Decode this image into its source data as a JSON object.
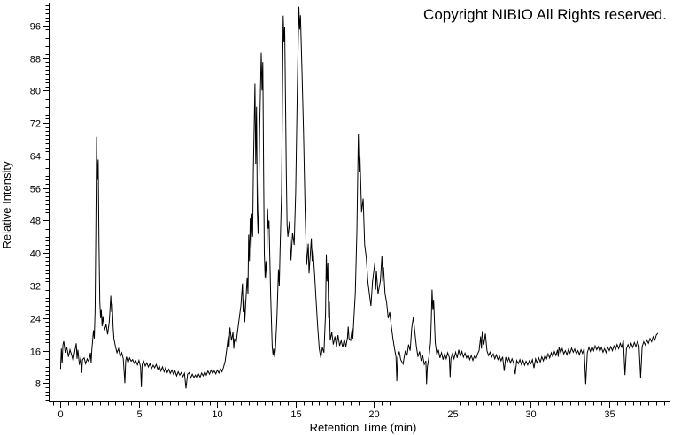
{
  "chart_data": {
    "type": "line",
    "annotation": "Copyright NIBIO All Rights reserved.",
    "xlabel": "Retention Time (min)",
    "ylabel": "Relative Intensity",
    "x_major_ticks": [
      0,
      5,
      10,
      15,
      20,
      25,
      30,
      35
    ],
    "x_minor_step": 0.5,
    "x_minor_range": [
      -0.5,
      38.5
    ],
    "y_major_ticks": [
      8,
      16,
      24,
      32,
      40,
      48,
      56,
      64,
      72,
      80,
      88,
      96
    ],
    "y_minor_step": 1,
    "y_minor_range": [
      4,
      101
    ],
    "xlim": [
      -0.73,
      38.9
    ],
    "ylim": [
      3.4,
      101.6
    ],
    "grid": false,
    "legend": "none",
    "line_color": "#000000",
    "axis_color": "#000000",
    "background": "#ffffff",
    "points": [
      [
        0.0,
        11.5
      ],
      [
        0.05,
        16.5
      ],
      [
        0.1,
        13.0
      ],
      [
        0.15,
        17.5
      ],
      [
        0.2,
        18.3
      ],
      [
        0.3,
        15.5
      ],
      [
        0.4,
        16.8
      ],
      [
        0.5,
        14.5
      ],
      [
        0.6,
        16.2
      ],
      [
        0.7,
        15.0
      ],
      [
        0.8,
        13.5
      ],
      [
        0.9,
        15.8
      ],
      [
        1.0,
        17.8
      ],
      [
        1.05,
        14.0
      ],
      [
        1.1,
        16.2
      ],
      [
        1.2,
        12.5
      ],
      [
        1.3,
        14.5
      ],
      [
        1.35,
        10.5
      ],
      [
        1.4,
        13.8
      ],
      [
        1.5,
        14.2
      ],
      [
        1.6,
        12.8
      ],
      [
        1.7,
        14.0
      ],
      [
        1.8,
        13.2
      ],
      [
        1.9,
        15.5
      ],
      [
        1.95,
        13.0
      ],
      [
        2.0,
        16.5
      ],
      [
        2.1,
        21.0
      ],
      [
        2.15,
        19.0
      ],
      [
        2.2,
        26.0
      ],
      [
        2.25,
        45.0
      ],
      [
        2.3,
        68.6
      ],
      [
        2.35,
        58.0
      ],
      [
        2.4,
        63.0
      ],
      [
        2.45,
        42.0
      ],
      [
        2.5,
        28.0
      ],
      [
        2.55,
        24.0
      ],
      [
        2.6,
        26.0
      ],
      [
        2.65,
        22.0
      ],
      [
        2.7,
        24.5
      ],
      [
        2.8,
        21.0
      ],
      [
        2.9,
        22.5
      ],
      [
        3.0,
        20.0
      ],
      [
        3.1,
        23.0
      ],
      [
        3.15,
        26.0
      ],
      [
        3.2,
        29.5
      ],
      [
        3.25,
        25.5
      ],
      [
        3.3,
        27.5
      ],
      [
        3.35,
        22.0
      ],
      [
        3.4,
        19.0
      ],
      [
        3.5,
        17.0
      ],
      [
        3.6,
        15.5
      ],
      [
        3.7,
        16.5
      ],
      [
        3.8,
        14.5
      ],
      [
        3.9,
        15.5
      ],
      [
        4.0,
        14.0
      ],
      [
        4.1,
        8.0
      ],
      [
        4.15,
        13.5
      ],
      [
        4.2,
        14.5
      ],
      [
        4.3,
        13.0
      ],
      [
        4.4,
        14.2
      ],
      [
        4.5,
        13.4
      ],
      [
        4.6,
        13.8
      ],
      [
        4.7,
        12.9
      ],
      [
        4.8,
        13.5
      ],
      [
        4.9,
        12.5
      ],
      [
        5.0,
        13.6
      ],
      [
        5.1,
        12.0
      ],
      [
        5.15,
        7.0
      ],
      [
        5.2,
        12.6
      ],
      [
        5.3,
        13.4
      ],
      [
        5.4,
        12.2
      ],
      [
        5.5,
        13.0
      ],
      [
        5.6,
        12.0
      ],
      [
        5.7,
        12.8
      ],
      [
        5.8,
        11.6
      ],
      [
        5.9,
        12.4
      ],
      [
        6.0,
        11.8
      ],
      [
        6.1,
        12.6
      ],
      [
        6.2,
        11.4
      ],
      [
        6.3,
        12.2
      ],
      [
        6.4,
        11.0
      ],
      [
        6.5,
        12.0
      ],
      [
        6.6,
        10.8
      ],
      [
        6.7,
        11.8
      ],
      [
        6.8,
        10.6
      ],
      [
        6.9,
        11.4
      ],
      [
        7.0,
        10.4
      ],
      [
        7.1,
        11.2
      ],
      [
        7.2,
        10.2
      ],
      [
        7.3,
        11.0
      ],
      [
        7.4,
        9.8
      ],
      [
        7.5,
        10.8
      ],
      [
        7.6,
        10.0
      ],
      [
        7.7,
        10.6
      ],
      [
        7.8,
        9.6
      ],
      [
        7.9,
        10.4
      ],
      [
        8.0,
        6.7
      ],
      [
        8.1,
        10.2
      ],
      [
        8.2,
        10.6
      ],
      [
        8.3,
        9.3
      ],
      [
        8.4,
        10.2
      ],
      [
        8.5,
        9.4
      ],
      [
        8.6,
        10.0
      ],
      [
        8.7,
        9.2
      ],
      [
        8.8,
        10.2
      ],
      [
        8.9,
        9.5
      ],
      [
        9.0,
        10.5
      ],
      [
        9.1,
        9.8
      ],
      [
        9.2,
        10.8
      ],
      [
        9.3,
        10.0
      ],
      [
        9.4,
        11.0
      ],
      [
        9.5,
        10.2
      ],
      [
        9.6,
        11.2
      ],
      [
        9.7,
        10.4
      ],
      [
        9.8,
        11.0
      ],
      [
        9.9,
        10.3
      ],
      [
        10.0,
        11.2
      ],
      [
        10.1,
        10.5
      ],
      [
        10.2,
        11.5
      ],
      [
        10.3,
        10.8
      ],
      [
        10.4,
        12.0
      ],
      [
        10.5,
        13.5
      ],
      [
        10.6,
        16.5
      ],
      [
        10.7,
        19.5
      ],
      [
        10.75,
        17.0
      ],
      [
        10.8,
        21.7
      ],
      [
        10.9,
        18.5
      ],
      [
        11.0,
        20.5
      ],
      [
        11.05,
        16.5
      ],
      [
        11.1,
        19.0
      ],
      [
        11.2,
        18.0
      ],
      [
        11.3,
        21.0
      ],
      [
        11.4,
        24.0
      ],
      [
        11.5,
        27.0
      ],
      [
        11.6,
        32.5
      ],
      [
        11.65,
        25.5
      ],
      [
        11.7,
        29.0
      ],
      [
        11.75,
        23.0
      ],
      [
        11.8,
        27.0
      ],
      [
        11.9,
        34.0
      ],
      [
        11.95,
        30.0
      ],
      [
        12.0,
        44.5
      ],
      [
        12.05,
        38.0
      ],
      [
        12.1,
        48.5
      ],
      [
        12.15,
        41.0
      ],
      [
        12.2,
        49.7
      ],
      [
        12.25,
        44.0
      ],
      [
        12.3,
        60.0
      ],
      [
        12.4,
        81.7
      ],
      [
        12.45,
        62.0
      ],
      [
        12.5,
        76.0
      ],
      [
        12.55,
        50.0
      ],
      [
        12.6,
        44.7
      ],
      [
        12.65,
        55.0
      ],
      [
        12.7,
        70.0
      ],
      [
        12.8,
        89.3
      ],
      [
        12.85,
        80.0
      ],
      [
        12.9,
        87.0
      ],
      [
        12.95,
        60.0
      ],
      [
        13.0,
        40.0
      ],
      [
        13.05,
        34.0
      ],
      [
        13.1,
        38.0
      ],
      [
        13.15,
        33.9
      ],
      [
        13.2,
        51.0
      ],
      [
        13.25,
        46.0
      ],
      [
        13.3,
        48.0
      ],
      [
        13.4,
        30.0
      ],
      [
        13.5,
        17.0
      ],
      [
        13.55,
        15.0
      ],
      [
        13.6,
        16.5
      ],
      [
        13.65,
        14.5
      ],
      [
        13.7,
        16.0
      ],
      [
        13.8,
        24.0
      ],
      [
        13.9,
        36.0
      ],
      [
        13.95,
        32.0
      ],
      [
        14.0,
        40.0
      ],
      [
        14.1,
        55.0
      ],
      [
        14.2,
        98.4
      ],
      [
        14.25,
        92.0
      ],
      [
        14.3,
        95.5
      ],
      [
        14.4,
        60.0
      ],
      [
        14.45,
        46.9
      ],
      [
        14.5,
        44.0
      ],
      [
        14.6,
        47.8
      ],
      [
        14.7,
        38.2
      ],
      [
        14.8,
        45.0
      ],
      [
        14.9,
        42.0
      ],
      [
        15.0,
        55.0
      ],
      [
        15.1,
        80.0
      ],
      [
        15.2,
        100.6
      ],
      [
        15.25,
        95.0
      ],
      [
        15.3,
        98.5
      ],
      [
        15.4,
        85.0
      ],
      [
        15.5,
        69.5
      ],
      [
        15.6,
        50.0
      ],
      [
        15.7,
        37.1
      ],
      [
        15.8,
        42.3
      ],
      [
        15.85,
        35.0
      ],
      [
        15.9,
        38.0
      ],
      [
        16.0,
        43.6
      ],
      [
        16.05,
        38.0
      ],
      [
        16.1,
        41.0
      ],
      [
        16.2,
        35.0
      ],
      [
        16.3,
        28.2
      ],
      [
        16.4,
        22.0
      ],
      [
        16.5,
        16.5
      ],
      [
        16.6,
        14.2
      ],
      [
        16.7,
        16.8
      ],
      [
        16.8,
        15.5
      ],
      [
        16.9,
        25.0
      ],
      [
        16.95,
        39.7
      ],
      [
        17.0,
        33.0
      ],
      [
        17.05,
        37.5
      ],
      [
        17.1,
        24.0
      ],
      [
        17.15,
        28.0
      ],
      [
        17.2,
        18.5
      ],
      [
        17.3,
        20.5
      ],
      [
        17.4,
        17.5
      ],
      [
        17.5,
        19.5
      ],
      [
        17.6,
        17.0
      ],
      [
        17.7,
        19.8
      ],
      [
        17.8,
        17.2
      ],
      [
        17.9,
        18.5
      ],
      [
        18.0,
        16.8
      ],
      [
        18.1,
        18.8
      ],
      [
        18.2,
        17.0
      ],
      [
        18.3,
        19.2
      ],
      [
        18.35,
        21.9
      ],
      [
        18.4,
        19.0
      ],
      [
        18.5,
        18.5
      ],
      [
        18.6,
        21.5
      ],
      [
        18.65,
        19.0
      ],
      [
        18.7,
        23.0
      ],
      [
        18.8,
        30.0
      ],
      [
        18.9,
        45.0
      ],
      [
        19.0,
        69.3
      ],
      [
        19.05,
        60.0
      ],
      [
        19.1,
        64.0
      ],
      [
        19.2,
        50.0
      ],
      [
        19.3,
        53.4
      ],
      [
        19.4,
        42.0
      ],
      [
        19.5,
        39.0
      ],
      [
        19.6,
        33.0
      ],
      [
        19.7,
        30.0
      ],
      [
        19.8,
        27.0
      ],
      [
        19.9,
        33.0
      ],
      [
        20.05,
        37.6
      ],
      [
        20.1,
        31.0
      ],
      [
        20.15,
        35.5
      ],
      [
        20.25,
        30.0
      ],
      [
        20.4,
        33.0
      ],
      [
        20.5,
        39.3
      ],
      [
        20.55,
        33.0
      ],
      [
        20.6,
        36.5
      ],
      [
        20.7,
        30.0
      ],
      [
        20.8,
        27.8
      ],
      [
        20.9,
        24.0
      ],
      [
        21.0,
        25.5
      ],
      [
        21.1,
        22.0
      ],
      [
        21.2,
        19.0
      ],
      [
        21.3,
        16.5
      ],
      [
        21.4,
        14.5
      ],
      [
        21.45,
        8.5
      ],
      [
        21.5,
        14.2
      ],
      [
        21.6,
        15.8
      ],
      [
        21.7,
        13.8
      ],
      [
        21.85,
        12.7
      ],
      [
        21.9,
        14.0
      ],
      [
        22.0,
        16.0
      ],
      [
        22.1,
        14.8
      ],
      [
        22.2,
        17.5
      ],
      [
        22.3,
        16.0
      ],
      [
        22.4,
        21.5
      ],
      [
        22.5,
        24.2
      ],
      [
        22.6,
        20.5
      ],
      [
        22.7,
        17.0
      ],
      [
        22.8,
        14.5
      ],
      [
        22.9,
        15.8
      ],
      [
        23.0,
        13.5
      ],
      [
        23.1,
        14.8
      ],
      [
        23.2,
        12.6
      ],
      [
        23.3,
        13.5
      ],
      [
        23.35,
        7.8
      ],
      [
        23.4,
        12.0
      ],
      [
        23.5,
        14.5
      ],
      [
        23.6,
        18.0
      ],
      [
        23.65,
        24.0
      ],
      [
        23.7,
        31.0
      ],
      [
        23.75,
        26.0
      ],
      [
        23.8,
        28.5
      ],
      [
        23.9,
        18.0
      ],
      [
        24.0,
        15.0
      ],
      [
        24.1,
        16.2
      ],
      [
        24.2,
        14.2
      ],
      [
        24.3,
        15.5
      ],
      [
        24.4,
        13.8
      ],
      [
        24.5,
        15.2
      ],
      [
        24.6,
        14.0
      ],
      [
        24.7,
        15.5
      ],
      [
        24.8,
        14.3
      ],
      [
        24.85,
        9.5
      ],
      [
        24.9,
        14.0
      ],
      [
        25.0,
        15.3
      ],
      [
        25.1,
        14.0
      ],
      [
        25.2,
        15.6
      ],
      [
        25.3,
        14.2
      ],
      [
        25.4,
        16.2
      ],
      [
        25.5,
        14.6
      ],
      [
        25.6,
        15.8
      ],
      [
        25.7,
        14.4
      ],
      [
        25.8,
        15.4
      ],
      [
        25.9,
        14.2
      ],
      [
        26.0,
        15.0
      ],
      [
        26.1,
        13.8
      ],
      [
        26.2,
        14.8
      ],
      [
        26.3,
        13.6
      ],
      [
        26.4,
        14.6
      ],
      [
        26.5,
        14.0
      ],
      [
        26.6,
        15.2
      ],
      [
        26.7,
        16.0
      ],
      [
        26.8,
        19.5
      ],
      [
        26.85,
        16.5
      ],
      [
        26.9,
        20.8
      ],
      [
        27.0,
        17.5
      ],
      [
        27.1,
        20.2
      ],
      [
        27.2,
        16.0
      ],
      [
        27.3,
        14.8
      ],
      [
        27.4,
        15.6
      ],
      [
        27.5,
        14.4
      ],
      [
        27.6,
        15.2
      ],
      [
        27.7,
        14.0
      ],
      [
        27.8,
        15.0
      ],
      [
        27.9,
        13.8
      ],
      [
        28.0,
        14.6
      ],
      [
        28.1,
        13.5
      ],
      [
        28.2,
        14.5
      ],
      [
        28.3,
        11.0
      ],
      [
        28.4,
        14.4
      ],
      [
        28.5,
        13.2
      ],
      [
        28.6,
        14.2
      ],
      [
        28.7,
        13.0
      ],
      [
        28.8,
        14.0
      ],
      [
        28.9,
        13.0
      ],
      [
        29.0,
        10.2
      ],
      [
        29.1,
        13.6
      ],
      [
        29.2,
        12.8
      ],
      [
        29.3,
        13.8
      ],
      [
        29.4,
        12.6
      ],
      [
        29.5,
        13.6
      ],
      [
        29.6,
        12.4
      ],
      [
        29.7,
        13.4
      ],
      [
        29.8,
        12.5
      ],
      [
        29.9,
        13.5
      ],
      [
        30.0,
        12.8
      ],
      [
        30.1,
        13.8
      ],
      [
        30.2,
        11.7
      ],
      [
        30.3,
        14.0
      ],
      [
        30.4,
        13.0
      ],
      [
        30.5,
        14.2
      ],
      [
        30.6,
        13.2
      ],
      [
        30.7,
        14.5
      ],
      [
        30.8,
        13.5
      ],
      [
        30.9,
        14.8
      ],
      [
        31.0,
        14.0
      ],
      [
        31.1,
        15.2
      ],
      [
        31.2,
        14.2
      ],
      [
        31.3,
        15.5
      ],
      [
        31.4,
        14.5
      ],
      [
        31.5,
        15.8
      ],
      [
        31.6,
        14.8
      ],
      [
        31.7,
        16.2
      ],
      [
        31.75,
        14.5
      ],
      [
        31.8,
        16.8
      ],
      [
        31.9,
        15.5
      ],
      [
        32.0,
        16.5
      ],
      [
        32.1,
        15.2
      ],
      [
        32.2,
        16.0
      ],
      [
        32.3,
        15.0
      ],
      [
        32.4,
        16.3
      ],
      [
        32.5,
        15.4
      ],
      [
        32.6,
        16.6
      ],
      [
        32.7,
        15.6
      ],
      [
        32.8,
        16.4
      ],
      [
        32.9,
        15.2
      ],
      [
        33.0,
        16.0
      ],
      [
        33.1,
        15.0
      ],
      [
        33.2,
        16.2
      ],
      [
        33.3,
        15.3
      ],
      [
        33.4,
        16.5
      ],
      [
        33.5,
        7.8
      ],
      [
        33.6,
        15.5
      ],
      [
        33.7,
        16.8
      ],
      [
        33.8,
        15.8
      ],
      [
        33.9,
        17.0
      ],
      [
        34.0,
        16.0
      ],
      [
        34.1,
        17.2
      ],
      [
        34.2,
        16.2
      ],
      [
        34.3,
        17.0
      ],
      [
        34.4,
        15.8
      ],
      [
        34.5,
        16.8
      ],
      [
        34.6,
        15.6
      ],
      [
        34.7,
        16.5
      ],
      [
        34.8,
        15.5
      ],
      [
        34.9,
        16.8
      ],
      [
        35.0,
        16.0
      ],
      [
        35.1,
        17.0
      ],
      [
        35.2,
        16.0
      ],
      [
        35.3,
        17.2
      ],
      [
        35.4,
        16.2
      ],
      [
        35.5,
        17.5
      ],
      [
        35.6,
        16.5
      ],
      [
        35.7,
        17.8
      ],
      [
        35.8,
        16.8
      ],
      [
        35.9,
        18.6
      ],
      [
        36.0,
        10.0
      ],
      [
        36.1,
        16.5
      ],
      [
        36.2,
        17.5
      ],
      [
        36.3,
        16.5
      ],
      [
        36.4,
        17.8
      ],
      [
        36.5,
        16.8
      ],
      [
        36.6,
        18.0
      ],
      [
        36.7,
        17.0
      ],
      [
        36.8,
        18.2
      ],
      [
        36.9,
        17.2
      ],
      [
        37.0,
        9.3
      ],
      [
        37.1,
        17.0
      ],
      [
        37.2,
        18.2
      ],
      [
        37.3,
        17.4
      ],
      [
        37.4,
        18.6
      ],
      [
        37.5,
        17.8
      ],
      [
        37.6,
        19.0
      ],
      [
        37.7,
        18.2
      ],
      [
        37.8,
        19.4
      ],
      [
        37.9,
        18.6
      ],
      [
        38.0,
        19.8
      ],
      [
        38.1,
        20.3
      ]
    ]
  }
}
